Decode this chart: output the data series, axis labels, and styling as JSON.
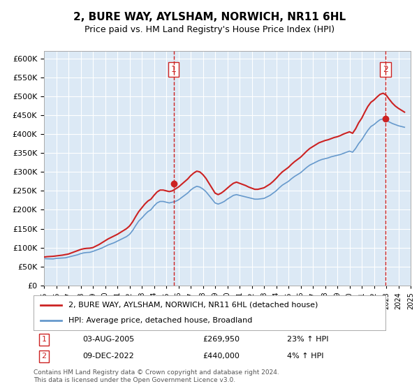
{
  "title": "2, BURE WAY, AYLSHAM, NORWICH, NR11 6HL",
  "subtitle": "Price paid vs. HM Land Registry's House Price Index (HPI)",
  "background_color": "#dce9f5",
  "plot_bg_color": "#dce9f5",
  "hpi_color": "#6699cc",
  "price_color": "#cc2222",
  "dashed_line_color": "#cc2222",
  "ylim": [
    0,
    620000
  ],
  "yticks": [
    0,
    50000,
    100000,
    150000,
    200000,
    250000,
    300000,
    350000,
    400000,
    450000,
    500000,
    550000,
    600000
  ],
  "xlim_start": 1995,
  "xlim_end": 2025,
  "legend_label_price": "2, BURE WAY, AYLSHAM, NORWICH, NR11 6HL (detached house)",
  "legend_label_hpi": "HPI: Average price, detached house, Broadland",
  "sale1_date": "03-AUG-2005",
  "sale1_price": "£269,950",
  "sale1_hpi": "23% ↑ HPI",
  "sale1_x": 2005.6,
  "sale1_y": 269950,
  "sale2_date": "09-DEC-2022",
  "sale2_price": "£440,000",
  "sale2_hpi": "4% ↑ HPI",
  "sale2_x": 2022.95,
  "sale2_y": 440000,
  "footer": "Contains HM Land Registry data © Crown copyright and database right 2024.\nThis data is licensed under the Open Government Licence v3.0.",
  "hpi_data": [
    [
      1995.0,
      71000
    ],
    [
      1995.25,
      70500
    ],
    [
      1995.5,
      70200
    ],
    [
      1995.75,
      70000
    ],
    [
      1996.0,
      71500
    ],
    [
      1996.25,
      72000
    ],
    [
      1996.5,
      72500
    ],
    [
      1996.75,
      73000
    ],
    [
      1997.0,
      75000
    ],
    [
      1997.25,
      77000
    ],
    [
      1997.5,
      79000
    ],
    [
      1997.75,
      81000
    ],
    [
      1998.0,
      84000
    ],
    [
      1998.25,
      86000
    ],
    [
      1998.5,
      87000
    ],
    [
      1998.75,
      87500
    ],
    [
      1999.0,
      90000
    ],
    [
      1999.25,
      93000
    ],
    [
      1999.5,
      96000
    ],
    [
      1999.75,
      99000
    ],
    [
      2000.0,
      103000
    ],
    [
      2000.25,
      107000
    ],
    [
      2000.5,
      110000
    ],
    [
      2000.75,
      113000
    ],
    [
      2001.0,
      117000
    ],
    [
      2001.25,
      121000
    ],
    [
      2001.5,
      125000
    ],
    [
      2001.75,
      129000
    ],
    [
      2002.0,
      135000
    ],
    [
      2002.25,
      145000
    ],
    [
      2002.5,
      158000
    ],
    [
      2002.75,
      170000
    ],
    [
      2003.0,
      178000
    ],
    [
      2003.25,
      187000
    ],
    [
      2003.5,
      195000
    ],
    [
      2003.75,
      200000
    ],
    [
      2004.0,
      210000
    ],
    [
      2004.25,
      218000
    ],
    [
      2004.5,
      222000
    ],
    [
      2004.75,
      222000
    ],
    [
      2005.0,
      220000
    ],
    [
      2005.25,
      218000
    ],
    [
      2005.5,
      220000
    ],
    [
      2005.75,
      222000
    ],
    [
      2006.0,
      226000
    ],
    [
      2006.25,
      232000
    ],
    [
      2006.5,
      238000
    ],
    [
      2006.75,
      244000
    ],
    [
      2007.0,
      252000
    ],
    [
      2007.25,
      258000
    ],
    [
      2007.5,
      262000
    ],
    [
      2007.75,
      260000
    ],
    [
      2008.0,
      255000
    ],
    [
      2008.25,
      248000
    ],
    [
      2008.5,
      238000
    ],
    [
      2008.75,
      228000
    ],
    [
      2009.0,
      218000
    ],
    [
      2009.25,
      215000
    ],
    [
      2009.5,
      218000
    ],
    [
      2009.75,
      222000
    ],
    [
      2010.0,
      228000
    ],
    [
      2010.25,
      233000
    ],
    [
      2010.5,
      238000
    ],
    [
      2010.75,
      240000
    ],
    [
      2011.0,
      238000
    ],
    [
      2011.25,
      236000
    ],
    [
      2011.5,
      234000
    ],
    [
      2011.75,
      232000
    ],
    [
      2012.0,
      230000
    ],
    [
      2012.25,
      228000
    ],
    [
      2012.5,
      228000
    ],
    [
      2012.75,
      229000
    ],
    [
      2013.0,
      230000
    ],
    [
      2013.25,
      234000
    ],
    [
      2013.5,
      238000
    ],
    [
      2013.75,
      244000
    ],
    [
      2014.0,
      250000
    ],
    [
      2014.25,
      258000
    ],
    [
      2014.5,
      265000
    ],
    [
      2014.75,
      270000
    ],
    [
      2015.0,
      275000
    ],
    [
      2015.25,
      282000
    ],
    [
      2015.5,
      288000
    ],
    [
      2015.75,
      293000
    ],
    [
      2016.0,
      298000
    ],
    [
      2016.25,
      305000
    ],
    [
      2016.5,
      312000
    ],
    [
      2016.75,
      318000
    ],
    [
      2017.0,
      322000
    ],
    [
      2017.25,
      326000
    ],
    [
      2017.5,
      330000
    ],
    [
      2017.75,
      333000
    ],
    [
      2018.0,
      335000
    ],
    [
      2018.25,
      337000
    ],
    [
      2018.5,
      340000
    ],
    [
      2018.75,
      342000
    ],
    [
      2019.0,
      344000
    ],
    [
      2019.25,
      346000
    ],
    [
      2019.5,
      349000
    ],
    [
      2019.75,
      352000
    ],
    [
      2020.0,
      355000
    ],
    [
      2020.25,
      352000
    ],
    [
      2020.5,
      362000
    ],
    [
      2020.75,
      375000
    ],
    [
      2021.0,
      385000
    ],
    [
      2021.25,
      398000
    ],
    [
      2021.5,
      410000
    ],
    [
      2021.75,
      420000
    ],
    [
      2022.0,
      425000
    ],
    [
      2022.25,
      432000
    ],
    [
      2022.5,
      438000
    ],
    [
      2022.75,
      440000
    ],
    [
      2023.0,
      438000
    ],
    [
      2023.25,
      432000
    ],
    [
      2023.5,
      428000
    ],
    [
      2023.75,
      425000
    ],
    [
      2024.0,
      422000
    ],
    [
      2024.25,
      420000
    ],
    [
      2024.5,
      418000
    ]
  ],
  "price_data": [
    [
      1995.0,
      75000
    ],
    [
      1995.25,
      76000
    ],
    [
      1995.5,
      76500
    ],
    [
      1995.75,
      77000
    ],
    [
      1996.0,
      78000
    ],
    [
      1996.25,
      79000
    ],
    [
      1996.5,
      80000
    ],
    [
      1996.75,
      81500
    ],
    [
      1997.0,
      83000
    ],
    [
      1997.25,
      86000
    ],
    [
      1997.5,
      89000
    ],
    [
      1997.75,
      92000
    ],
    [
      1998.0,
      95000
    ],
    [
      1998.25,
      97000
    ],
    [
      1998.5,
      98000
    ],
    [
      1998.75,
      98500
    ],
    [
      1999.0,
      100000
    ],
    [
      1999.25,
      104000
    ],
    [
      1999.5,
      108000
    ],
    [
      1999.75,
      113000
    ],
    [
      2000.0,
      118000
    ],
    [
      2000.25,
      123000
    ],
    [
      2000.5,
      127000
    ],
    [
      2000.75,
      131000
    ],
    [
      2001.0,
      135000
    ],
    [
      2001.25,
      140000
    ],
    [
      2001.5,
      145000
    ],
    [
      2001.75,
      150000
    ],
    [
      2002.0,
      157000
    ],
    [
      2002.25,
      168000
    ],
    [
      2002.5,
      182000
    ],
    [
      2002.75,
      195000
    ],
    [
      2003.0,
      205000
    ],
    [
      2003.25,
      215000
    ],
    [
      2003.5,
      223000
    ],
    [
      2003.75,
      228000
    ],
    [
      2004.0,
      238000
    ],
    [
      2004.25,
      247000
    ],
    [
      2004.5,
      252000
    ],
    [
      2004.75,
      252000
    ],
    [
      2005.0,
      250000
    ],
    [
      2005.25,
      248000
    ],
    [
      2005.5,
      250000
    ],
    [
      2005.75,
      255000
    ],
    [
      2006.0,
      260000
    ],
    [
      2006.25,
      267000
    ],
    [
      2006.5,
      274000
    ],
    [
      2006.75,
      281000
    ],
    [
      2007.0,
      290000
    ],
    [
      2007.25,
      297000
    ],
    [
      2007.5,
      302000
    ],
    [
      2007.75,
      300000
    ],
    [
      2008.0,
      293000
    ],
    [
      2008.25,
      283000
    ],
    [
      2008.5,
      270000
    ],
    [
      2008.75,
      257000
    ],
    [
      2009.0,
      244000
    ],
    [
      2009.25,
      240000
    ],
    [
      2009.5,
      244000
    ],
    [
      2009.75,
      250000
    ],
    [
      2010.0,
      257000
    ],
    [
      2010.25,
      264000
    ],
    [
      2010.5,
      270000
    ],
    [
      2010.75,
      273000
    ],
    [
      2011.0,
      270000
    ],
    [
      2011.25,
      267000
    ],
    [
      2011.5,
      264000
    ],
    [
      2011.75,
      260000
    ],
    [
      2012.0,
      257000
    ],
    [
      2012.25,
      254000
    ],
    [
      2012.5,
      254000
    ],
    [
      2012.75,
      256000
    ],
    [
      2013.0,
      258000
    ],
    [
      2013.25,
      263000
    ],
    [
      2013.5,
      268000
    ],
    [
      2013.75,
      275000
    ],
    [
      2014.0,
      283000
    ],
    [
      2014.25,
      292000
    ],
    [
      2014.5,
      300000
    ],
    [
      2014.75,
      306000
    ],
    [
      2015.0,
      312000
    ],
    [
      2015.25,
      320000
    ],
    [
      2015.5,
      327000
    ],
    [
      2015.75,
      333000
    ],
    [
      2016.0,
      339000
    ],
    [
      2016.25,
      347000
    ],
    [
      2016.5,
      355000
    ],
    [
      2016.75,
      362000
    ],
    [
      2017.0,
      367000
    ],
    [
      2017.25,
      372000
    ],
    [
      2017.5,
      377000
    ],
    [
      2017.75,
      380000
    ],
    [
      2018.0,
      383000
    ],
    [
      2018.25,
      385000
    ],
    [
      2018.5,
      388000
    ],
    [
      2018.75,
      391000
    ],
    [
      2019.0,
      393000
    ],
    [
      2019.25,
      396000
    ],
    [
      2019.5,
      400000
    ],
    [
      2019.75,
      403000
    ],
    [
      2020.0,
      406000
    ],
    [
      2020.25,
      402000
    ],
    [
      2020.5,
      414000
    ],
    [
      2020.75,
      430000
    ],
    [
      2021.0,
      442000
    ],
    [
      2021.25,
      458000
    ],
    [
      2021.5,
      473000
    ],
    [
      2021.75,
      484000
    ],
    [
      2022.0,
      490000
    ],
    [
      2022.25,
      498000
    ],
    [
      2022.5,
      505000
    ],
    [
      2022.75,
      508000
    ],
    [
      2023.0,
      503000
    ],
    [
      2023.25,
      492000
    ],
    [
      2023.5,
      482000
    ],
    [
      2023.75,
      474000
    ],
    [
      2024.0,
      468000
    ],
    [
      2024.25,
      463000
    ],
    [
      2024.5,
      458000
    ]
  ]
}
